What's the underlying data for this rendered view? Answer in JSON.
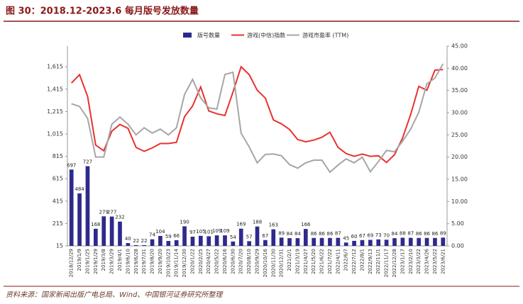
{
  "chart_data": {
    "type": "bar_line",
    "title": "图 30：2018.12-2023.6 每月版号发放数量",
    "source": "资料来源：国家新闻出版广电总局、Wind、中国银河证券研究所整理",
    "categories": [
      "2018/12/29",
      "2019/1/9",
      "2019/1/25",
      "2019/1/29",
      "2019/3/8",
      "2019/3/29",
      "2019/4/1",
      "2019/6/10",
      "2019/6/28",
      "2019/7/31",
      "2019/8/20",
      "2019/9/20",
      "2019/10/23",
      "2019/11/14",
      "2019/12/30",
      "2020/1/22",
      "2020/2/25",
      "2020/4/27",
      "2020/5/22",
      "2020/6/16",
      "2020/6/30",
      "2020/7/20",
      "2020/8/10",
      "2020/9/29",
      "2020/10/16",
      "2020/11/30",
      "2020/12/31",
      "2021/2/1",
      "2021/3/19",
      "2021/4/27",
      "2021/5/20",
      "2021/6/22",
      "2021/7/22",
      "2022/4/11",
      "2022/6/7",
      "2022/7/12",
      "2022/8/1",
      "2022/9/13",
      "2022/11/1",
      "2022/11/17",
      "2022/12/28",
      "2023/1/17",
      "2023/2/10",
      "2023/3/22",
      "2023/4/26",
      "2023/5/22",
      "2023/6/21"
    ],
    "series": [
      {
        "name": "版号数量",
        "kind": "bar",
        "color": "#2e2a8c",
        "values": [
          697,
          484,
          727,
          168,
          279,
          277,
          232,
          40,
          22,
          22,
          74,
          104,
          59,
          66,
          190,
          97,
          105,
          101,
          109,
          109,
          54,
          169,
          57,
          188,
          67,
          163,
          89,
          84,
          84,
          166,
          86,
          86,
          86,
          87,
          45,
          60,
          67,
          69,
          73,
          70,
          84,
          88,
          87,
          86,
          86,
          86,
          89
        ]
      },
      {
        "name": "游戏(中信)指数",
        "kind": "line",
        "color": "#e8322e",
        "values": [
          1470,
          1545,
          1350,
          915,
          865,
          1040,
          1100,
          1065,
          895,
          860,
          890,
          930,
          930,
          940,
          1170,
          1265,
          1435,
          1220,
          1195,
          1180,
          1390,
          1615,
          1545,
          1405,
          1335,
          1140,
          1105,
          1055,
          965,
          945,
          960,
          985,
          1030,
          895,
          840,
          815,
          835,
          815,
          820,
          760,
          830,
          980,
          1190,
          1440,
          1405,
          1585,
          1590
        ]
      },
      {
        "name": "游戏市盈率 (TTM)",
        "kind": "line",
        "axis": "y2",
        "color": "#a6a6a6",
        "values": [
          32,
          31.4,
          28.7,
          20,
          20,
          27.4,
          29,
          27.4,
          25,
          26.6,
          25.4,
          26.3,
          25,
          26.6,
          34.1,
          37.5,
          33.3,
          31.1,
          30.8,
          38.6,
          39.1,
          25.4,
          22.3,
          18.7,
          20.6,
          20.7,
          20.3,
          18.3,
          17.5,
          18.7,
          19.3,
          19.3,
          16.6,
          18.2,
          19.6,
          18.7,
          20,
          16.7,
          19,
          21.5,
          21.2,
          23.6,
          26.3,
          30.1,
          36.5,
          37.8,
          41
        ]
      }
    ],
    "ylim": [
      15,
      1800
    ],
    "yticks": [
      15,
      215,
      415,
      615,
      815,
      {
        "value": 1015,
        "label": "1,015"
      },
      {
        "value": 1215,
        "label": "1,215"
      },
      {
        "value": 1415,
        "label": "1,415"
      },
      {
        "value": 1615,
        "label": "1,615"
      }
    ],
    "y2lim": [
      0,
      45
    ],
    "y2ticks": [
      {
        "value": 0,
        "label": "0.00"
      },
      {
        "value": 5,
        "label": "5.00"
      },
      {
        "value": 10,
        "label": "10.00"
      },
      {
        "value": 15,
        "label": "15.00"
      },
      {
        "value": 20,
        "label": "20.00"
      },
      {
        "value": 25,
        "label": "25.00"
      },
      {
        "value": 30,
        "label": "30.00"
      },
      {
        "value": 35,
        "label": "35.00"
      },
      {
        "value": 40,
        "label": "40.00"
      },
      {
        "value": 45,
        "label": "45.00"
      }
    ]
  }
}
